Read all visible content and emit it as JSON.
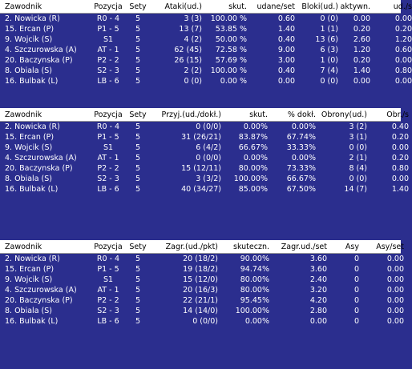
{
  "colors": {
    "header_bg": "#ffffff",
    "grid_bg": "#2b2e8e",
    "text": "#ffffff"
  },
  "table1": {
    "headers": [
      "Zawodnik",
      "Pozycja",
      "Sety",
      "Ataki(ud.)",
      "skut.",
      "udane/set",
      "Bloki(ud.)",
      "aktywn.",
      "ud./s"
    ],
    "rows": [
      [
        "2. Nowicka (R)",
        "R0 - 4",
        "5",
        "3 (3)",
        "100.00 %",
        "0.60",
        "0 (0)",
        "0.00",
        "0.00"
      ],
      [
        "15. Ercan (P)",
        "P1 - 5",
        "5",
        "13 (7)",
        "53.85 %",
        "1.40",
        "1 (1)",
        "0.20",
        "0.20"
      ],
      [
        "9. Wojcik (S)",
        "S1",
        "5",
        "4 (2)",
        "50.00 %",
        "0.40",
        "13 (6)",
        "2.60",
        "1.20"
      ],
      [
        "4. Szczurowska (A)",
        "AT - 1",
        "5",
        "62 (45)",
        "72.58 %",
        "9.00",
        "6 (3)",
        "1.20",
        "0.60"
      ],
      [
        "20. Baczynska (P)",
        "P2 - 2",
        "5",
        "26 (15)",
        "57.69 %",
        "3.00",
        "1 (0)",
        "0.20",
        "0.00"
      ],
      [
        "8. Obiala (S)",
        "S2 - 3",
        "5",
        "2 (2)",
        "100.00 %",
        "0.40",
        "7 (4)",
        "1.40",
        "0.80"
      ],
      [
        "16. Bulbak (L)",
        "LB - 6",
        "5",
        "0 (0)",
        "0.00 %",
        "0.00",
        "0 (0)",
        "0.00",
        "0.00"
      ]
    ]
  },
  "table2": {
    "headers": [
      "Zawodnik",
      "Pozycja",
      "Sety",
      "Przyj.(ud./dokł.)",
      "skut.",
      "% dokł.",
      "Obrony(ud.)",
      "Obr./s"
    ],
    "rows": [
      [
        "2. Nowicka (R)",
        "R0 - 4",
        "5",
        "0 (0/0)",
        "0.00%",
        "0.00%",
        "3 (2)",
        "0.40"
      ],
      [
        "15. Ercan (P)",
        "P1 - 5",
        "5",
        "31 (26/21)",
        "83.87%",
        "67.74%",
        "3 (1)",
        "0.20"
      ],
      [
        "9. Wojcik (S)",
        "S1",
        "5",
        "6 (4/2)",
        "66.67%",
        "33.33%",
        "0 (0)",
        "0.00"
      ],
      [
        "4. Szczurowska (A)",
        "AT - 1",
        "5",
        "0 (0/0)",
        "0.00%",
        "0.00%",
        "2 (1)",
        "0.20"
      ],
      [
        "20. Baczynska (P)",
        "P2 - 2",
        "5",
        "15 (12/11)",
        "80.00%",
        "73.33%",
        "8 (4)",
        "0.80"
      ],
      [
        "8. Obiala (S)",
        "S2 - 3",
        "5",
        "3 (3/2)",
        "100.00%",
        "66.67%",
        "0 (0)",
        "0.00"
      ],
      [
        "16. Bulbak (L)",
        "LB - 6",
        "5",
        "40 (34/27)",
        "85.00%",
        "67.50%",
        "14 (7)",
        "1.40"
      ]
    ]
  },
  "table3": {
    "headers": [
      "Zawodnik",
      "Pozycja",
      "Sety",
      "Zagr.(ud./pkt)",
      "skuteczn.",
      "Zagr.ud./set",
      "Asy",
      "Asy/set"
    ],
    "rows": [
      [
        "2. Nowicka (R)",
        "R0 - 4",
        "5",
        "20 (18/2)",
        "90.00%",
        "3.60",
        "0",
        "0.00"
      ],
      [
        "15. Ercan (P)",
        "P1 - 5",
        "5",
        "19 (18/2)",
        "94.74%",
        "3.60",
        "0",
        "0.00"
      ],
      [
        "9. Wojcik (S)",
        "S1",
        "5",
        "15 (12/0)",
        "80.00%",
        "2.40",
        "0",
        "0.00"
      ],
      [
        "4. Szczurowska (A)",
        "AT - 1",
        "5",
        "20 (16/3)",
        "80.00%",
        "3.20",
        "0",
        "0.00"
      ],
      [
        "20. Baczynska (P)",
        "P2 - 2",
        "5",
        "22 (21/1)",
        "95.45%",
        "4.20",
        "0",
        "0.00"
      ],
      [
        "8. Obiala (S)",
        "S2 - 3",
        "5",
        "14 (14/0)",
        "100.00%",
        "2.80",
        "0",
        "0.00"
      ],
      [
        "16. Bulbak (L)",
        "LB - 6",
        "5",
        "0 (0/0)",
        "0.00%",
        "0.00",
        "0",
        "0.00"
      ]
    ]
  }
}
